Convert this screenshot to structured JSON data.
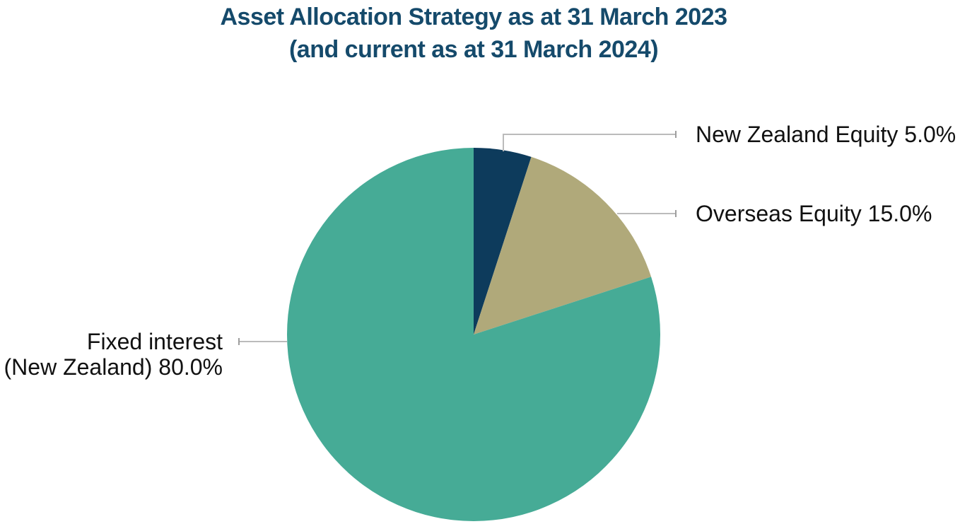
{
  "title": {
    "line1": "Asset Allocation Strategy as at 31 March 2023",
    "line2": "(and current as at 31 March 2024)"
  },
  "colors": {
    "background": "#FFFFFF",
    "title_text": "#154A6B",
    "label_text": "#111111",
    "leader_line": "#BBBBBB",
    "leader_tick": "#9E9E9E",
    "navy": "#0D3B5C",
    "khaki": "#B0A97A",
    "teal": "#46AB96"
  },
  "chart_data": {
    "type": "pie",
    "title": "Asset Allocation Strategy as at 31 March 2023 (and current as at 31 March 2024)",
    "start_angle_deg": 0,
    "direction": "clockwise",
    "legend_position": "none",
    "labels_style": "external-leader-lines",
    "slices": [
      {
        "label": "New Zealand Equity",
        "value": 5.0,
        "display": "New Zealand Equity 5.0%",
        "color": "#0D3B5C"
      },
      {
        "label": "Overseas Equity",
        "value": 15.0,
        "display": "Overseas Equity 15.0%",
        "color": "#B0A97A"
      },
      {
        "label": "Fixed interest (New Zealand)",
        "value": 80.0,
        "display": "Fixed interest (New Zealand) 80.0%",
        "display_line1": "Fixed interest",
        "display_line2": "(New Zealand) 80.0%",
        "color": "#46AB96"
      }
    ]
  }
}
